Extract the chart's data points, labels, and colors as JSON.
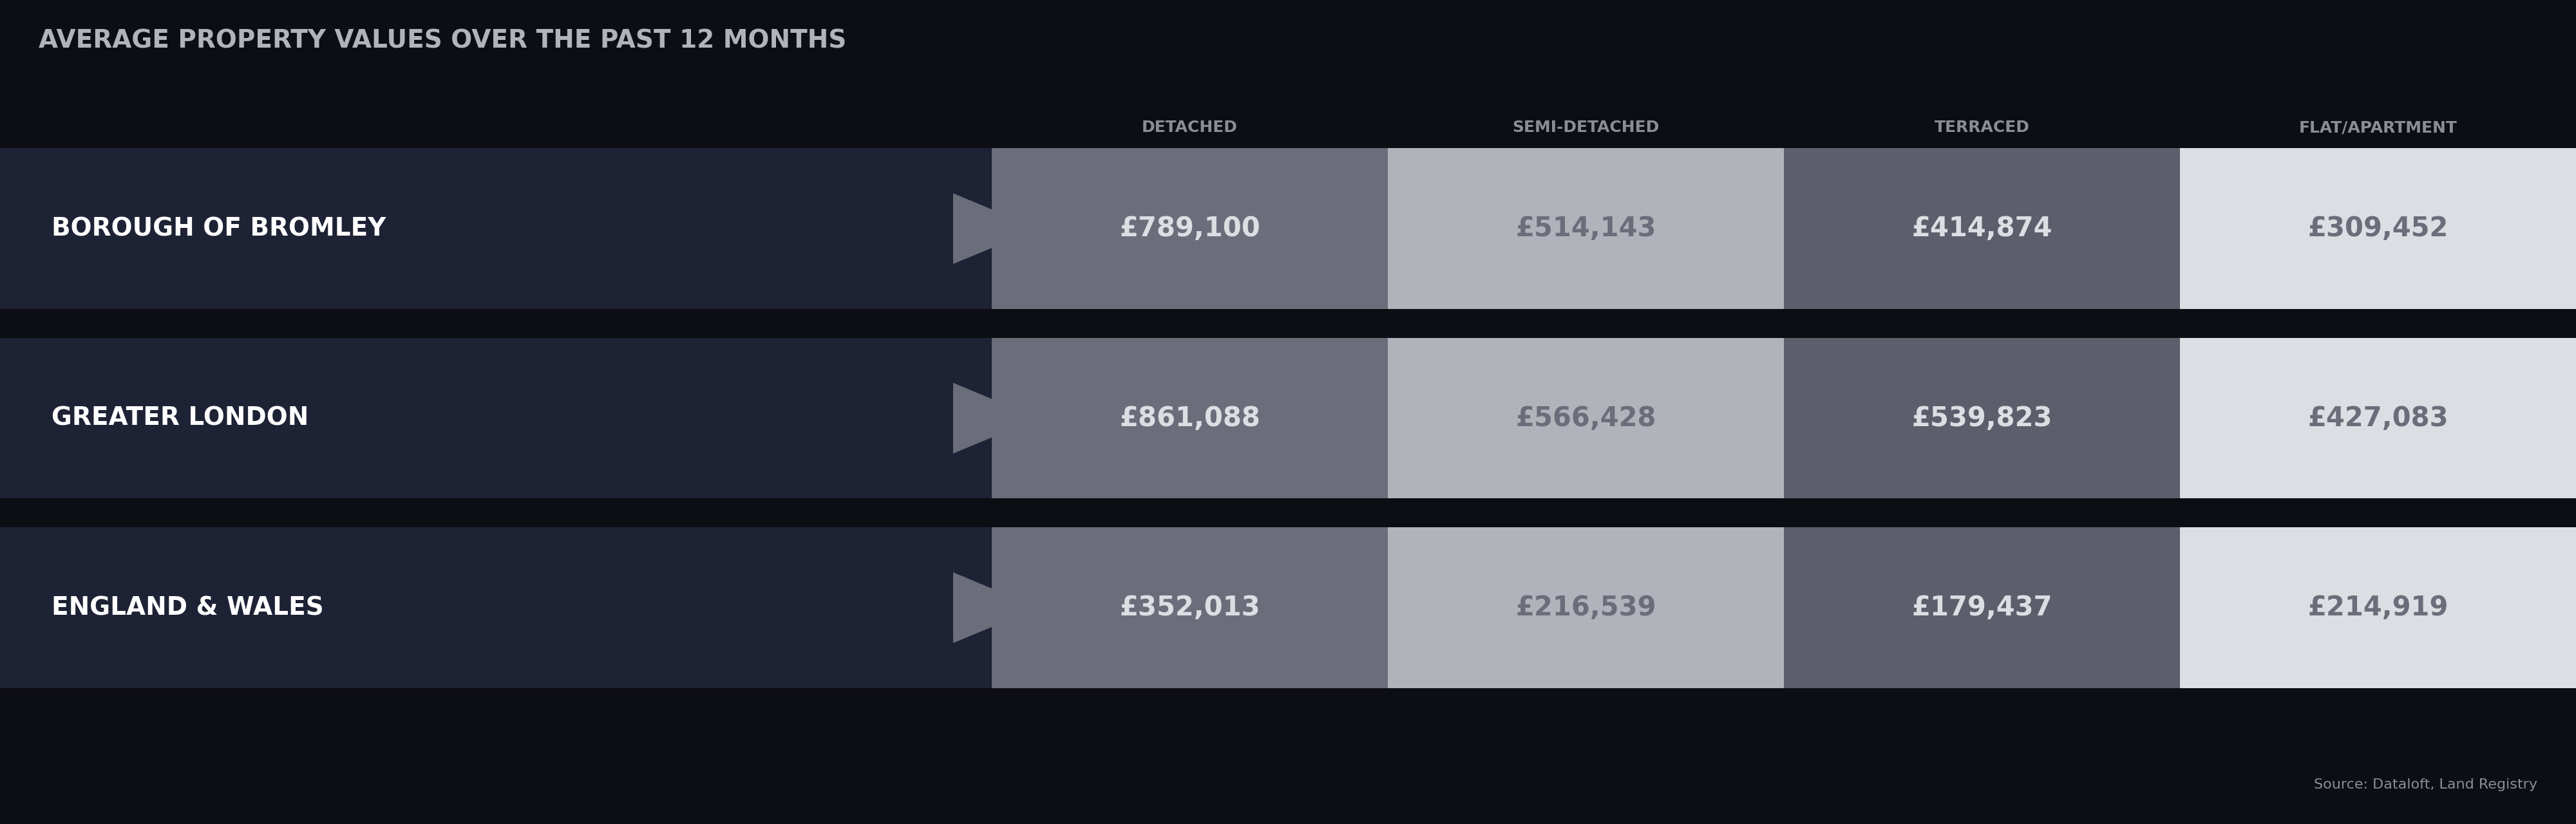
{
  "title": "AVERAGE PROPERTY VALUES OVER THE PAST 12 MONTHS",
  "column_headers": [
    "DETACHED",
    "SEMI-DETACHED",
    "TERRACED",
    "FLAT/APARTMENT"
  ],
  "rows": [
    {
      "label": "BOROUGH OF BROMLEY",
      "values": [
        "£789,100",
        "£514,143",
        "£414,874",
        "£309,452"
      ]
    },
    {
      "label": "GREATER LONDON",
      "values": [
        "£861,088",
        "£566,428",
        "£539,823",
        "£427,083"
      ]
    },
    {
      "label": "ENGLAND & WALES",
      "values": [
        "£352,013",
        "£216,539",
        "£179,437",
        "£214,919"
      ]
    }
  ],
  "background_color": "#0d0d14",
  "row_dark_bg": "#1e2235",
  "col_colors": [
    "#6b6e7a",
    "#b0b3ba",
    "#5c5f6b",
    "#dcdee3"
  ],
  "col_text_colors": [
    "#dcdee3",
    "#6b6e7a",
    "#dcdee3",
    "#6b6e7a"
  ],
  "header_text_color": "#8a8d96",
  "title_color": "#b0b3ba",
  "label_color": "#ffffff",
  "source_text": "Source: Dataloft, Land Registry",
  "source_color": "#8a8d96"
}
